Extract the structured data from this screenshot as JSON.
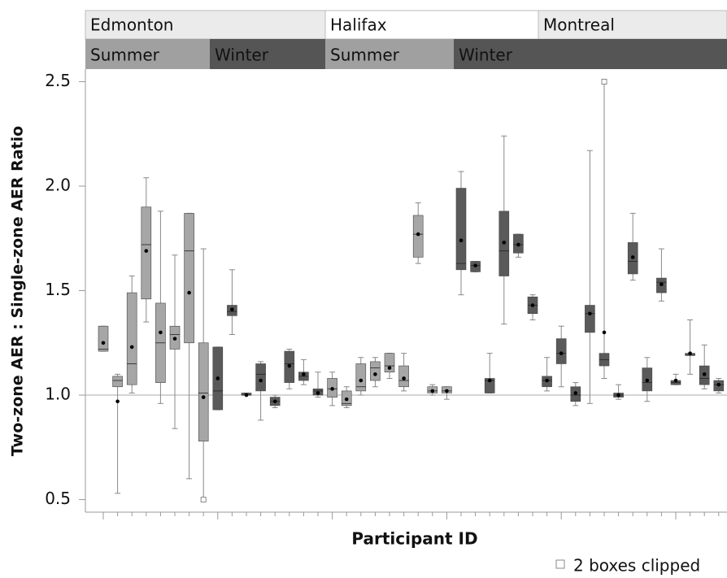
{
  "chart_data": {
    "type": "box",
    "panels": [
      "Edmonton",
      "Halifax",
      "Montreal"
    ],
    "seasons": [
      "Summer",
      "Winter",
      "Summer",
      "Winter"
    ],
    "y_label": "Two-zone AER : Single-zone AER Ratio",
    "x_label": "Participant ID",
    "clip_note": "2 boxes clipped",
    "ylim": [
      0.44,
      2.56
    ],
    "yticks": [
      0.5,
      {
        "value": 1,
        "label": "1.0"
      },
      1.5,
      {
        "value": 2,
        "label": "2.0"
      },
      2.5
    ],
    "refline": 1,
    "categories": [
      null,
      null,
      null,
      null,
      null,
      null,
      null,
      null,
      null,
      null,
      null,
      null,
      null,
      null,
      null,
      null,
      null,
      null,
      null,
      null,
      null,
      null,
      null,
      null,
      null,
      null,
      null,
      null,
      null,
      null,
      null,
      null,
      null,
      null,
      null,
      null,
      null,
      null,
      null,
      null,
      null,
      null,
      null,
      null
    ],
    "boxes": [
      {
        "min": 1.21,
        "q1": 1.21,
        "median": 1.22,
        "q3": 1.33,
        "max": 1.33,
        "mean": 1.25,
        "color": "#a6a6a6"
      },
      {
        "min": 0.53,
        "q1": 1.04,
        "median": 1.07,
        "q3": 1.09,
        "max": 1.1,
        "mean": 0.97,
        "color": "#a6a6a6"
      },
      {
        "min": 1.01,
        "q1": 1.05,
        "median": 1.15,
        "q3": 1.49,
        "max": 1.57,
        "mean": 1.23,
        "color": "#a6a6a6"
      },
      {
        "min": 1.35,
        "q1": 1.46,
        "median": 1.72,
        "q3": 1.9,
        "max": 2.04,
        "mean": 1.69,
        "color": "#a6a6a6"
      },
      {
        "min": 0.96,
        "q1": 1.06,
        "median": 1.25,
        "q3": 1.44,
        "max": 1.88,
        "mean": 1.3,
        "color": "#a6a6a6"
      },
      {
        "min": 0.84,
        "q1": 1.22,
        "median": 1.29,
        "q3": 1.33,
        "max": 1.67,
        "mean": 1.27,
        "color": "#a6a6a6"
      },
      {
        "min": 0.6,
        "q1": 1.25,
        "median": 1.69,
        "q3": 1.87,
        "max": 1.87,
        "mean": 1.49,
        "color": "#a6a6a6"
      },
      {
        "min": 0.5,
        "q1": 0.78,
        "median": 1.01,
        "q3": 1.25,
        "max": 1.7,
        "mean": 0.99,
        "color": "#a6a6a6",
        "clipped_at": "min"
      },
      {
        "min": 0.93,
        "q1": 0.93,
        "median": 1.02,
        "q3": 1.23,
        "max": 1.23,
        "mean": 1.08,
        "color": "#5a5a5a"
      },
      {
        "min": 1.29,
        "q1": 1.38,
        "median": 1.4,
        "q3": 1.43,
        "max": 1.6,
        "mean": 1.41,
        "color": "#5a5a5a"
      },
      {
        "min": 1.0,
        "q1": 1.0,
        "median": 1.0,
        "q3": 1.01,
        "max": 1.01,
        "mean": 1.0,
        "color": "#5a5a5a"
      },
      {
        "min": 0.88,
        "q1": 1.02,
        "median": 1.1,
        "q3": 1.15,
        "max": 1.16,
        "mean": 1.07,
        "color": "#5a5a5a"
      },
      {
        "min": 0.94,
        "q1": 0.95,
        "median": 0.97,
        "q3": 0.99,
        "max": 1.0,
        "mean": 0.97,
        "color": "#5a5a5a"
      },
      {
        "min": 1.03,
        "q1": 1.06,
        "median": 1.15,
        "q3": 1.21,
        "max": 1.22,
        "mean": 1.14,
        "color": "#5a5a5a"
      },
      {
        "min": 1.05,
        "q1": 1.07,
        "median": 1.09,
        "q3": 1.11,
        "max": 1.17,
        "mean": 1.1,
        "color": "#5a5a5a"
      },
      {
        "min": 0.99,
        "q1": 1.0,
        "median": 1.02,
        "q3": 1.03,
        "max": 1.11,
        "mean": 1.01,
        "color": "#5a5a5a"
      },
      {
        "min": 0.95,
        "q1": 0.99,
        "median": 1.03,
        "q3": 1.08,
        "max": 1.11,
        "mean": 1.03,
        "color": "#a6a6a6"
      },
      {
        "min": 0.94,
        "q1": 0.95,
        "median": 0.96,
        "q3": 1.02,
        "max": 1.04,
        "mean": 0.98,
        "color": "#a6a6a6"
      },
      {
        "min": 1.0,
        "q1": 1.02,
        "median": 1.04,
        "q3": 1.15,
        "max": 1.18,
        "mean": 1.07,
        "color": "#a6a6a6"
      },
      {
        "min": 1.04,
        "q1": 1.07,
        "median": 1.13,
        "q3": 1.16,
        "max": 1.18,
        "mean": 1.1,
        "color": "#a6a6a6"
      },
      {
        "min": 1.08,
        "q1": 1.11,
        "median": 1.14,
        "q3": 1.2,
        "max": 1.2,
        "mean": 1.13,
        "color": "#a6a6a6"
      },
      {
        "min": 1.02,
        "q1": 1.04,
        "median": 1.07,
        "q3": 1.14,
        "max": 1.2,
        "mean": 1.08,
        "color": "#a6a6a6"
      },
      {
        "min": 1.63,
        "q1": 1.66,
        "median": 1.77,
        "q3": 1.86,
        "max": 1.92,
        "mean": 1.77,
        "color": "#a6a6a6"
      },
      {
        "min": 1.0,
        "q1": 1.01,
        "median": 1.02,
        "q3": 1.04,
        "max": 1.05,
        "mean": 1.02,
        "color": "#a6a6a6"
      },
      {
        "min": 0.98,
        "q1": 1.01,
        "median": 1.02,
        "q3": 1.04,
        "max": 1.04,
        "mean": 1.02,
        "color": "#a6a6a6"
      },
      {
        "min": 1.48,
        "q1": 1.6,
        "median": 1.63,
        "q3": 1.99,
        "max": 2.07,
        "mean": 1.74,
        "color": "#5a5a5a"
      },
      {
        "min": 1.59,
        "q1": 1.59,
        "median": 1.62,
        "q3": 1.64,
        "max": 1.64,
        "mean": 1.62,
        "color": "#5a5a5a"
      },
      {
        "min": 1.01,
        "q1": 1.01,
        "median": 1.07,
        "q3": 1.08,
        "max": 1.2,
        "mean": 1.07,
        "color": "#5a5a5a"
      },
      {
        "min": 1.34,
        "q1": 1.57,
        "median": 1.69,
        "q3": 1.88,
        "max": 2.24,
        "mean": 1.73,
        "color": "#5a5a5a"
      },
      {
        "min": 1.66,
        "q1": 1.68,
        "median": 1.72,
        "q3": 1.77,
        "max": 1.77,
        "mean": 1.72,
        "color": "#5a5a5a"
      },
      {
        "min": 1.36,
        "q1": 1.39,
        "median": 1.43,
        "q3": 1.47,
        "max": 1.48,
        "mean": 1.43,
        "color": "#5a5a5a"
      },
      {
        "min": 1.02,
        "q1": 1.04,
        "median": 1.07,
        "q3": 1.09,
        "max": 1.18,
        "mean": 1.07,
        "color": "#5a5a5a"
      },
      {
        "min": 1.04,
        "q1": 1.15,
        "median": 1.2,
        "q3": 1.27,
        "max": 1.33,
        "mean": 1.2,
        "color": "#5a5a5a"
      },
      {
        "min": 0.95,
        "q1": 0.97,
        "median": 1.0,
        "q3": 1.04,
        "max": 1.06,
        "mean": 1.01,
        "color": "#5a5a5a"
      },
      {
        "min": 0.96,
        "q1": 1.3,
        "median": 1.39,
        "q3": 1.43,
        "max": 2.17,
        "mean": 1.39,
        "color": "#5a5a5a"
      },
      {
        "min": 1.08,
        "q1": 1.14,
        "median": 1.17,
        "q3": 1.2,
        "max": 2.5,
        "mean": 1.3,
        "color": "#5a5a5a",
        "clipped_at": "max"
      },
      {
        "min": 0.98,
        "q1": 0.99,
        "median": 1.0,
        "q3": 1.01,
        "max": 1.05,
        "mean": 1.0,
        "color": "#5a5a5a"
      },
      {
        "min": 1.55,
        "q1": 1.58,
        "median": 1.64,
        "q3": 1.73,
        "max": 1.87,
        "mean": 1.66,
        "color": "#5a5a5a"
      },
      {
        "min": 0.97,
        "q1": 1.02,
        "median": 1.06,
        "q3": 1.13,
        "max": 1.18,
        "mean": 1.07,
        "color": "#5a5a5a"
      },
      {
        "min": 1.45,
        "q1": 1.49,
        "median": 1.54,
        "q3": 1.56,
        "max": 1.7,
        "mean": 1.53,
        "color": "#5a5a5a"
      },
      {
        "min": 1.05,
        "q1": 1.05,
        "median": 1.06,
        "q3": 1.07,
        "max": 1.1,
        "mean": 1.07,
        "color": "#5a5a5a"
      },
      {
        "min": 1.1,
        "q1": 1.19,
        "median": 1.19,
        "q3": 1.2,
        "max": 1.36,
        "mean": 1.2,
        "color": "#5a5a5a"
      },
      {
        "min": 1.03,
        "q1": 1.05,
        "median": 1.08,
        "q3": 1.14,
        "max": 1.24,
        "mean": 1.1,
        "color": "#5a5a5a"
      },
      {
        "min": 1.01,
        "q1": 1.02,
        "median": 1.05,
        "q3": 1.07,
        "max": 1.08,
        "mean": 1.05,
        "color": "#5a5a5a"
      }
    ]
  }
}
